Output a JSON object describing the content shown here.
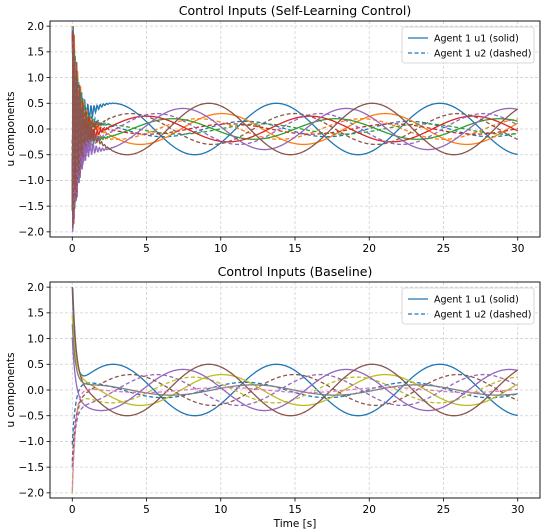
{
  "chart_data": [
    {
      "type": "line",
      "title": "Control Inputs (Self-Learning Control)",
      "xlabel": "",
      "ylabel": "u components",
      "xlim": [
        -1.5,
        31.5
      ],
      "ylim": [
        -2.1,
        2.1
      ],
      "xticks": [
        "0",
        "5",
        "10",
        "15",
        "20",
        "25",
        "30"
      ],
      "yticks": [
        "2.0",
        "1.5",
        "1.0",
        "0.5",
        "0.0",
        "−0.5",
        "−1.0",
        "−1.5",
        "−2.0"
      ],
      "grid": true,
      "legend_position": "top-right",
      "legend": [
        "Agent 1 u1 (solid)",
        "Agent 1 u2 (dashed)"
      ],
      "series": [
        {
          "color": "#1f77b4",
          "style": "solid",
          "amplitude": 0.5,
          "period": 11.0,
          "phase": 0.0,
          "x_range": [
            0,
            30
          ]
        },
        {
          "color": "#1f77b4",
          "style": "dashed",
          "amplitude": 0.15,
          "period": 11.0,
          "phase": 1.2,
          "x_range": [
            0,
            30
          ]
        },
        {
          "color": "#ff7f0e",
          "style": "solid",
          "amplitude": 0.3,
          "period": 11.0,
          "phase": 2.1,
          "x_range": [
            0,
            30
          ]
        },
        {
          "color": "#ff7f0e",
          "style": "dashed",
          "amplitude": 0.2,
          "period": 11.0,
          "phase": 3.0,
          "x_range": [
            0,
            30
          ]
        },
        {
          "color": "#2ca02c",
          "style": "solid",
          "amplitude": 0.2,
          "period": 11.0,
          "phase": 4.0,
          "x_range": [
            0,
            30
          ]
        },
        {
          "color": "#2ca02c",
          "style": "dashed",
          "amplitude": 0.1,
          "period": 11.0,
          "phase": 0.6,
          "x_range": [
            0,
            30
          ]
        },
        {
          "color": "#d62728",
          "style": "solid",
          "amplitude": 0.25,
          "period": 11.0,
          "phase": 5.0,
          "x_range": [
            0,
            30
          ]
        },
        {
          "color": "#d62728",
          "style": "dashed",
          "amplitude": 0.1,
          "period": 11.0,
          "phase": 1.8,
          "x_range": [
            0,
            30
          ]
        },
        {
          "color": "#9467bd",
          "style": "solid",
          "amplitude": 0.4,
          "period": 11.0,
          "phase": 3.6,
          "x_range": [
            0,
            30
          ]
        },
        {
          "color": "#9467bd",
          "style": "dashed",
          "amplitude": 0.3,
          "period": 11.0,
          "phase": 4.6,
          "x_range": [
            0,
            30
          ]
        },
        {
          "color": "#8c564b",
          "style": "solid",
          "amplitude": 0.5,
          "period": 11.0,
          "phase": 2.6,
          "x_range": [
            0,
            30
          ]
        },
        {
          "color": "#8c564b",
          "style": "dashed",
          "amplitude": 0.3,
          "period": 11.0,
          "phase": 5.6,
          "x_range": [
            0,
            30
          ]
        }
      ]
    },
    {
      "type": "line",
      "title": "Control Inputs (Baseline)",
      "xlabel": "Time [s]",
      "ylabel": "u components",
      "xlim": [
        -1.5,
        31.5
      ],
      "ylim": [
        -2.1,
        2.1
      ],
      "xticks": [
        "0",
        "5",
        "10",
        "15",
        "20",
        "25",
        "30"
      ],
      "yticks": [
        "2.0",
        "1.5",
        "1.0",
        "0.5",
        "0.0",
        "−0.5",
        "−1.0",
        "−1.5",
        "−2.0"
      ],
      "grid": true,
      "legend_position": "top-right",
      "legend": [
        "Agent 1 u1 (solid)",
        "Agent 1 u2 (dashed)"
      ],
      "series": [
        {
          "color": "#1f77b4",
          "style": "solid",
          "amplitude": 0.5,
          "period": 11.0,
          "phase": 0.0,
          "x_range": [
            0,
            30
          ]
        },
        {
          "color": "#1f77b4",
          "style": "dashed",
          "amplitude": 0.15,
          "period": 11.0,
          "phase": 1.2,
          "x_range": [
            0,
            30
          ]
        },
        {
          "color": "#bcbd22",
          "style": "solid",
          "amplitude": 0.3,
          "period": 11.0,
          "phase": 2.1,
          "x_range": [
            0,
            30
          ]
        },
        {
          "color": "#bcbd22",
          "style": "dashed",
          "amplitude": 0.25,
          "period": 11.0,
          "phase": 3.2,
          "x_range": [
            0,
            30
          ]
        },
        {
          "color": "#9467bd",
          "style": "solid",
          "amplitude": 0.4,
          "period": 11.0,
          "phase": 3.6,
          "x_range": [
            0,
            30
          ]
        },
        {
          "color": "#9467bd",
          "style": "dashed",
          "amplitude": 0.3,
          "period": 11.0,
          "phase": 4.6,
          "x_range": [
            0,
            30
          ]
        },
        {
          "color": "#8c564b",
          "style": "solid",
          "amplitude": 0.5,
          "period": 11.0,
          "phase": 2.6,
          "x_range": [
            0,
            30
          ]
        },
        {
          "color": "#8c564b",
          "style": "dashed",
          "amplitude": 0.3,
          "period": 11.0,
          "phase": 5.6,
          "x_range": [
            0,
            30
          ]
        },
        {
          "color": "#7f7f7f",
          "style": "solid",
          "amplitude": 0.1,
          "period": 11.0,
          "phase": 0.9,
          "x_range": [
            0,
            30
          ]
        },
        {
          "color": "#e377c2",
          "style": "dashed",
          "amplitude": 0.05,
          "period": 11.0,
          "phase": 2.0,
          "x_range": [
            0,
            30
          ]
        }
      ]
    }
  ]
}
